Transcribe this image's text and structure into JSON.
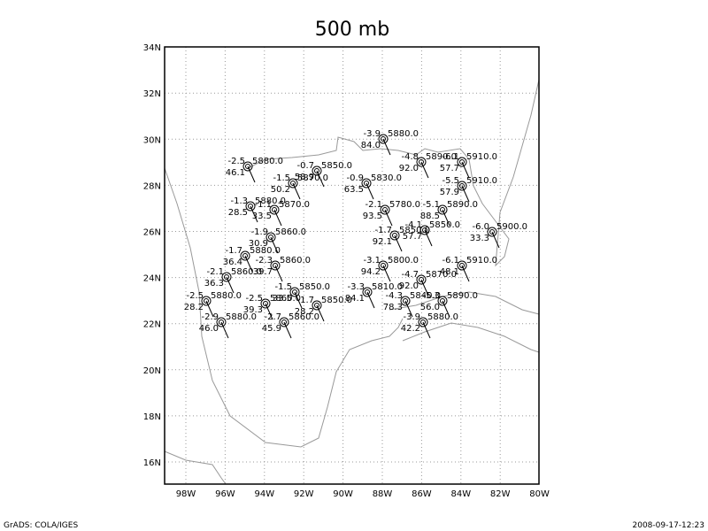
{
  "title": "500 mb",
  "lat_labels": [
    "16N",
    "18N",
    "20N",
    "22N",
    "24N",
    "26N",
    "28N",
    "30N",
    "32N",
    "34N"
  ],
  "lon_labels": [
    "98W",
    "96W",
    "94W",
    "92W",
    "90W",
    "88W",
    "86W",
    "84W",
    "82W",
    "80W"
  ],
  "stations": [
    {
      "temp": "-2.5",
      "height": "5880.0",
      "dewpoint": "46.1"
    },
    {
      "temp": "-3.9",
      "height": "5880.0",
      "dewpoint": "84.0"
    },
    {
      "temp": "-4.8",
      "height": "5890.0",
      "dewpoint": "92.0"
    },
    {
      "temp": "-6.1",
      "height": "5910.0",
      "dewpoint": "57.7"
    },
    {
      "temp": "-0.7",
      "height": "5850.0",
      "dewpoint": "58.9"
    },
    {
      "temp": "-1.5",
      "height": "5870.0",
      "dewpoint": "50.2"
    },
    {
      "temp": "-0.9",
      "height": "5830.0",
      "dewpoint": "63.5"
    },
    {
      "temp": "-5.5",
      "height": "5910.0",
      "dewpoint": "57.9"
    },
    {
      "temp": "-1.3",
      "height": "5880.0",
      "dewpoint": "28.5"
    },
    {
      "temp": "-1.1",
      "height": "5870.0",
      "dewpoint": "33.5"
    },
    {
      "temp": "-2.1",
      "height": "5780.0",
      "dewpoint": "93.5"
    },
    {
      "temp": "-5.1",
      "height": "5890.0",
      "dewpoint": "88.5"
    },
    {
      "temp": "-1.9",
      "height": "5860.0",
      "dewpoint": "30.9"
    },
    {
      "temp": "-1.7",
      "height": "5850.0",
      "dewpoint": "92.1"
    },
    {
      "temp": "-4.1",
      "height": "5850.0",
      "dewpoint": "57.7"
    },
    {
      "temp": "-6.0",
      "height": "5900.0",
      "dewpoint": "33.3"
    },
    {
      "temp": "-1.7",
      "height": "5880.0",
      "dewpoint": "36.4"
    },
    {
      "temp": "-2.3",
      "height": "5860.0",
      "dewpoint": "39.7"
    },
    {
      "temp": "-2.1",
      "height": "5860.0",
      "dewpoint": "36.3"
    },
    {
      "temp": "-3.1",
      "height": "5800.0",
      "dewpoint": "94.2"
    },
    {
      "temp": "-4.7",
      "height": "5870.0",
      "dewpoint": "92.0"
    },
    {
      "temp": "-6.1",
      "height": "5910.0",
      "dewpoint": "48.1"
    },
    {
      "temp": "-2.5",
      "height": "5880.0",
      "dewpoint": "28.2"
    },
    {
      "temp": "-2.5",
      "height": "5860.0",
      "dewpoint": "39.3"
    },
    {
      "temp": "-1.5",
      "height": "5850.0",
      "dewpoint": "33.5"
    },
    {
      "temp": "-1.7",
      "height": "5850.0",
      "dewpoint": "28.2"
    },
    {
      "temp": "-3.3",
      "height": "5810.0",
      "dewpoint": "84.1"
    },
    {
      "temp": "-4.3",
      "height": "5840.0",
      "dewpoint": "78.3"
    },
    {
      "temp": "-5.3",
      "height": "5890.0",
      "dewpoint": "56.0"
    },
    {
      "temp": "-2.9",
      "height": "5880.0",
      "dewpoint": "46.0"
    },
    {
      "temp": "-2.7",
      "height": "5860.0",
      "dewpoint": "45.9"
    },
    {
      "temp": "-3.9",
      "height": "5880.0",
      "dewpoint": "42.2"
    }
  ],
  "footer_left": "GrADS: COLA/IGES",
  "footer_right": "2008-09-17-12:23"
}
